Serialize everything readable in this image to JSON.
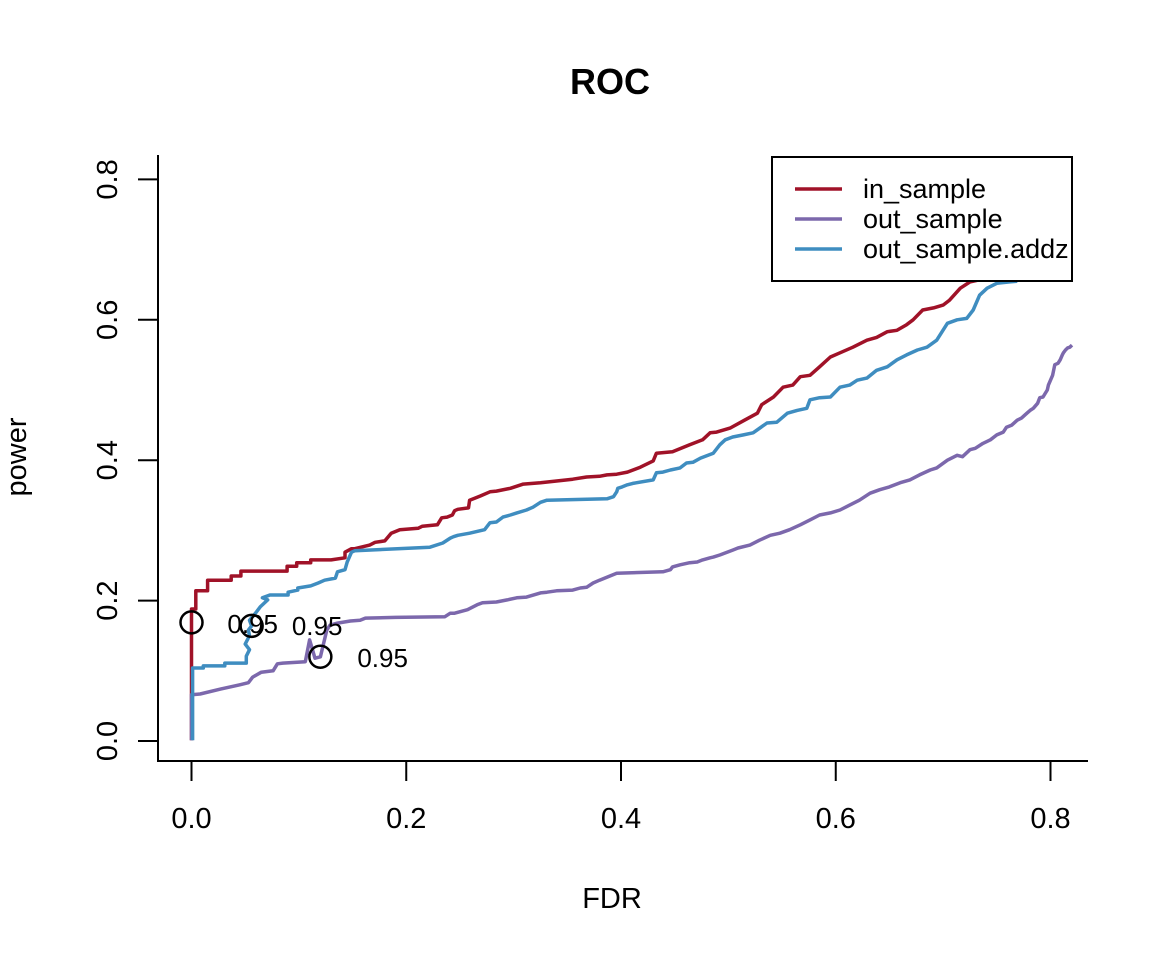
{
  "chart_data": {
    "type": "line",
    "title": "ROC",
    "xlabel": "FDR",
    "ylabel": "power",
    "x_ticks": [
      {
        "v": 0.0,
        "label": "0.0"
      },
      {
        "v": 0.2,
        "label": "0.2"
      },
      {
        "v": 0.4,
        "label": "0.4"
      },
      {
        "v": 0.6,
        "label": "0.6"
      },
      {
        "v": 0.8,
        "label": "0.8"
      }
    ],
    "y_ticks": [
      {
        "v": 0.0,
        "label": "0.0"
      },
      {
        "v": 0.2,
        "label": "0.2"
      },
      {
        "v": 0.4,
        "label": "0.4"
      },
      {
        "v": 0.6,
        "label": "0.6"
      },
      {
        "v": 0.8,
        "label": "0.8"
      }
    ],
    "xlim": [
      0,
      0.84
    ],
    "ylim": [
      0,
      0.82
    ],
    "grid": false,
    "legend_position": "topright",
    "series": [
      {
        "name": "in_sample",
        "color": "#A01228",
        "points": [
          [
            0,
            0.001
          ],
          [
            0,
            0.188
          ],
          [
            0.004,
            0.188
          ],
          [
            0.004,
            0.214
          ],
          [
            0.015,
            0.214
          ],
          [
            0.015,
            0.229
          ],
          [
            0.037,
            0.229
          ],
          [
            0.037,
            0.235
          ],
          [
            0.046,
            0.235
          ],
          [
            0.046,
            0.242
          ],
          [
            0.089,
            0.242
          ],
          [
            0.089,
            0.249
          ],
          [
            0.098,
            0.249
          ],
          [
            0.098,
            0.254
          ],
          [
            0.111,
            0.254
          ],
          [
            0.111,
            0.258
          ],
          [
            0.13,
            0.258
          ],
          [
            0.143,
            0.261
          ],
          [
            0.143,
            0.269
          ],
          [
            0.149,
            0.274
          ],
          [
            0.152,
            0.274
          ],
          [
            0.166,
            0.279
          ],
          [
            0.171,
            0.283
          ],
          [
            0.18,
            0.285
          ],
          [
            0.186,
            0.296
          ],
          [
            0.194,
            0.301
          ],
          [
            0.211,
            0.303
          ],
          [
            0.215,
            0.306
          ],
          [
            0.229,
            0.308
          ],
          [
            0.233,
            0.318
          ],
          [
            0.238,
            0.319
          ],
          [
            0.243,
            0.322
          ],
          [
            0.245,
            0.328
          ],
          [
            0.248,
            0.33
          ],
          [
            0.258,
            0.332
          ],
          [
            0.259,
            0.343
          ],
          [
            0.264,
            0.346
          ],
          [
            0.269,
            0.349
          ],
          [
            0.278,
            0.355
          ],
          [
            0.284,
            0.356
          ],
          [
            0.297,
            0.36
          ],
          [
            0.309,
            0.366
          ],
          [
            0.325,
            0.368
          ],
          [
            0.355,
            0.373
          ],
          [
            0.368,
            0.376
          ],
          [
            0.38,
            0.377
          ],
          [
            0.387,
            0.379
          ],
          [
            0.396,
            0.38
          ],
          [
            0.406,
            0.383
          ],
          [
            0.418,
            0.39
          ],
          [
            0.43,
            0.399
          ],
          [
            0.433,
            0.41
          ],
          [
            0.448,
            0.412
          ],
          [
            0.464,
            0.422
          ],
          [
            0.476,
            0.429
          ],
          [
            0.483,
            0.439
          ],
          [
            0.489,
            0.44
          ],
          [
            0.502,
            0.446
          ],
          [
            0.515,
            0.457
          ],
          [
            0.527,
            0.467
          ],
          [
            0.531,
            0.479
          ],
          [
            0.542,
            0.49
          ],
          [
            0.551,
            0.504
          ],
          [
            0.56,
            0.507
          ],
          [
            0.567,
            0.519
          ],
          [
            0.576,
            0.521
          ],
          [
            0.585,
            0.533
          ],
          [
            0.595,
            0.547
          ],
          [
            0.604,
            0.553
          ],
          [
            0.616,
            0.561
          ],
          [
            0.629,
            0.571
          ],
          [
            0.638,
            0.575
          ],
          [
            0.648,
            0.583
          ],
          [
            0.657,
            0.585
          ],
          [
            0.666,
            0.593
          ],
          [
            0.672,
            0.6
          ],
          [
            0.681,
            0.614
          ],
          [
            0.691,
            0.617
          ],
          [
            0.7,
            0.621
          ],
          [
            0.706,
            0.628
          ],
          [
            0.716,
            0.645
          ],
          [
            0.725,
            0.654
          ],
          [
            0.734,
            0.657
          ]
        ]
      },
      {
        "name": "out_sample",
        "color": "#7C68AC",
        "points": [
          [
            0,
            0.001
          ],
          [
            0,
            0.066
          ],
          [
            0.008,
            0.067
          ],
          [
            0.027,
            0.074
          ],
          [
            0.045,
            0.08
          ],
          [
            0.053,
            0.083
          ],
          [
            0.057,
            0.091
          ],
          [
            0.065,
            0.098
          ],
          [
            0.076,
            0.1
          ],
          [
            0.08,
            0.11
          ],
          [
            0.085,
            0.111
          ],
          [
            0.106,
            0.113
          ],
          [
            0.11,
            0.144
          ],
          [
            0.115,
            0.118
          ],
          [
            0.12,
            0.12
          ],
          [
            0.126,
            0.158
          ],
          [
            0.129,
            0.165
          ],
          [
            0.136,
            0.168
          ],
          [
            0.148,
            0.171
          ],
          [
            0.157,
            0.172
          ],
          [
            0.162,
            0.175
          ],
          [
            0.19,
            0.176
          ],
          [
            0.236,
            0.177
          ],
          [
            0.241,
            0.182
          ],
          [
            0.245,
            0.182
          ],
          [
            0.257,
            0.187
          ],
          [
            0.266,
            0.194
          ],
          [
            0.271,
            0.197
          ],
          [
            0.284,
            0.198
          ],
          [
            0.294,
            0.201
          ],
          [
            0.303,
            0.204
          ],
          [
            0.312,
            0.205
          ],
          [
            0.325,
            0.211
          ],
          [
            0.331,
            0.212
          ],
          [
            0.34,
            0.214
          ],
          [
            0.355,
            0.215
          ],
          [
            0.362,
            0.218
          ],
          [
            0.368,
            0.219
          ],
          [
            0.374,
            0.225
          ],
          [
            0.38,
            0.229
          ],
          [
            0.396,
            0.239
          ],
          [
            0.439,
            0.241
          ],
          [
            0.446,
            0.244
          ],
          [
            0.448,
            0.248
          ],
          [
            0.455,
            0.251
          ],
          [
            0.464,
            0.254
          ],
          [
            0.471,
            0.255
          ],
          [
            0.476,
            0.258
          ],
          [
            0.483,
            0.261
          ],
          [
            0.486,
            0.262
          ],
          [
            0.492,
            0.265
          ],
          [
            0.504,
            0.272
          ],
          [
            0.509,
            0.275
          ],
          [
            0.52,
            0.279
          ],
          [
            0.529,
            0.286
          ],
          [
            0.539,
            0.293
          ],
          [
            0.548,
            0.296
          ],
          [
            0.557,
            0.301
          ],
          [
            0.567,
            0.308
          ],
          [
            0.576,
            0.315
          ],
          [
            0.585,
            0.322
          ],
          [
            0.595,
            0.325
          ],
          [
            0.604,
            0.329
          ],
          [
            0.613,
            0.336
          ],
          [
            0.622,
            0.343
          ],
          [
            0.632,
            0.353
          ],
          [
            0.641,
            0.358
          ],
          [
            0.65,
            0.362
          ],
          [
            0.66,
            0.368
          ],
          [
            0.669,
            0.372
          ],
          [
            0.678,
            0.379
          ],
          [
            0.688,
            0.386
          ],
          [
            0.694,
            0.389
          ],
          [
            0.704,
            0.4
          ],
          [
            0.713,
            0.407
          ],
          [
            0.718,
            0.405
          ],
          [
            0.725,
            0.415
          ],
          [
            0.73,
            0.417
          ],
          [
            0.737,
            0.424
          ],
          [
            0.744,
            0.429
          ],
          [
            0.75,
            0.436
          ],
          [
            0.756,
            0.44
          ],
          [
            0.759,
            0.447
          ],
          [
            0.764,
            0.45
          ],
          [
            0.769,
            0.457
          ],
          [
            0.773,
            0.46
          ],
          [
            0.778,
            0.467
          ],
          [
            0.781,
            0.471
          ],
          [
            0.784,
            0.474
          ],
          [
            0.788,
            0.481
          ],
          [
            0.79,
            0.489
          ],
          [
            0.793,
            0.49
          ],
          [
            0.797,
            0.5
          ],
          [
            0.798,
            0.507
          ],
          [
            0.8,
            0.514
          ],
          [
            0.802,
            0.521
          ],
          [
            0.804,
            0.536
          ],
          [
            0.807,
            0.538
          ],
          [
            0.809,
            0.543
          ],
          [
            0.811,
            0.55
          ],
          [
            0.812,
            0.553
          ],
          [
            0.814,
            0.557
          ],
          [
            0.816,
            0.56
          ],
          [
            0.818,
            0.561
          ],
          [
            0.82,
            0.564
          ]
        ]
      },
      {
        "name": "out_sample.addz",
        "color": "#3F8DC0",
        "points": [
          [
            0.001,
            0.001
          ],
          [
            0.001,
            0.104
          ],
          [
            0.011,
            0.104
          ],
          [
            0.011,
            0.107
          ],
          [
            0.031,
            0.107
          ],
          [
            0.031,
            0.111
          ],
          [
            0.051,
            0.111
          ],
          [
            0.051,
            0.121
          ],
          [
            0.054,
            0.13
          ],
          [
            0.05,
            0.138
          ],
          [
            0.054,
            0.15
          ],
          [
            0.053,
            0.158
          ],
          [
            0.056,
            0.164
          ],
          [
            0.054,
            0.172
          ],
          [
            0.059,
            0.181
          ],
          [
            0.064,
            0.191
          ],
          [
            0.071,
            0.201
          ],
          [
            0.066,
            0.204
          ],
          [
            0.073,
            0.208
          ],
          [
            0.09,
            0.208
          ],
          [
            0.09,
            0.212
          ],
          [
            0.099,
            0.215
          ],
          [
            0.099,
            0.218
          ],
          [
            0.111,
            0.221
          ],
          [
            0.118,
            0.225
          ],
          [
            0.124,
            0.229
          ],
          [
            0.134,
            0.232
          ],
          [
            0.136,
            0.241
          ],
          [
            0.143,
            0.244
          ],
          [
            0.145,
            0.255
          ],
          [
            0.149,
            0.269
          ],
          [
            0.152,
            0.271
          ],
          [
            0.222,
            0.276
          ],
          [
            0.234,
            0.282
          ],
          [
            0.241,
            0.289
          ],
          [
            0.244,
            0.291
          ],
          [
            0.248,
            0.293
          ],
          [
            0.259,
            0.296
          ],
          [
            0.273,
            0.301
          ],
          [
            0.278,
            0.311
          ],
          [
            0.284,
            0.312
          ],
          [
            0.29,
            0.319
          ],
          [
            0.297,
            0.322
          ],
          [
            0.303,
            0.325
          ],
          [
            0.312,
            0.329
          ],
          [
            0.318,
            0.333
          ],
          [
            0.325,
            0.34
          ],
          [
            0.331,
            0.343
          ],
          [
            0.387,
            0.345
          ],
          [
            0.393,
            0.348
          ],
          [
            0.396,
            0.355
          ],
          [
            0.397,
            0.36
          ],
          [
            0.401,
            0.362
          ],
          [
            0.406,
            0.365
          ],
          [
            0.411,
            0.367
          ],
          [
            0.43,
            0.372
          ],
          [
            0.433,
            0.382
          ],
          [
            0.439,
            0.383
          ],
          [
            0.446,
            0.386
          ],
          [
            0.455,
            0.389
          ],
          [
            0.461,
            0.396
          ],
          [
            0.467,
            0.397
          ],
          [
            0.474,
            0.403
          ],
          [
            0.486,
            0.41
          ],
          [
            0.492,
            0.422
          ],
          [
            0.497,
            0.429
          ],
          [
            0.504,
            0.433
          ],
          [
            0.514,
            0.436
          ],
          [
            0.523,
            0.439
          ],
          [
            0.536,
            0.453
          ],
          [
            0.545,
            0.454
          ],
          [
            0.555,
            0.467
          ],
          [
            0.564,
            0.471
          ],
          [
            0.573,
            0.474
          ],
          [
            0.576,
            0.486
          ],
          [
            0.585,
            0.489
          ],
          [
            0.595,
            0.49
          ],
          [
            0.604,
            0.504
          ],
          [
            0.613,
            0.507
          ],
          [
            0.62,
            0.514
          ],
          [
            0.629,
            0.517
          ],
          [
            0.638,
            0.528
          ],
          [
            0.648,
            0.533
          ],
          [
            0.657,
            0.543
          ],
          [
            0.666,
            0.55
          ],
          [
            0.676,
            0.557
          ],
          [
            0.685,
            0.561
          ],
          [
            0.694,
            0.571
          ],
          [
            0.704,
            0.595
          ],
          [
            0.713,
            0.6
          ],
          [
            0.722,
            0.602
          ],
          [
            0.728,
            0.614
          ],
          [
            0.734,
            0.635
          ],
          [
            0.741,
            0.645
          ],
          [
            0.75,
            0.652
          ],
          [
            0.762,
            0.654
          ],
          [
            0.769,
            0.655
          ]
        ]
      }
    ],
    "threshold_points": [
      {
        "series": "in_sample",
        "label": "0.95",
        "x": 0.0,
        "y": 0.169,
        "label_x": 0.057,
        "label_y": 0.167,
        "color": "#A01228"
      },
      {
        "series": "out_sample.addz",
        "label": "0.95",
        "x": 0.056,
        "y": 0.164,
        "label_x": 0.117,
        "label_y": 0.164,
        "color": "#3F8DC0"
      },
      {
        "series": "out_sample",
        "label": "0.95",
        "x": 0.12,
        "y": 0.12,
        "label_x": 0.178,
        "label_y": 0.118,
        "color": "#7C68AC"
      }
    ],
    "legend": {
      "items": [
        {
          "label": "in_sample",
          "color": "#A01228"
        },
        {
          "label": "out_sample",
          "color": "#7C68AC"
        },
        {
          "label": "out_sample.addz",
          "color": "#3F8DC0"
        }
      ]
    }
  },
  "colors": {
    "axis": "#000000",
    "background": "#ffffff"
  }
}
